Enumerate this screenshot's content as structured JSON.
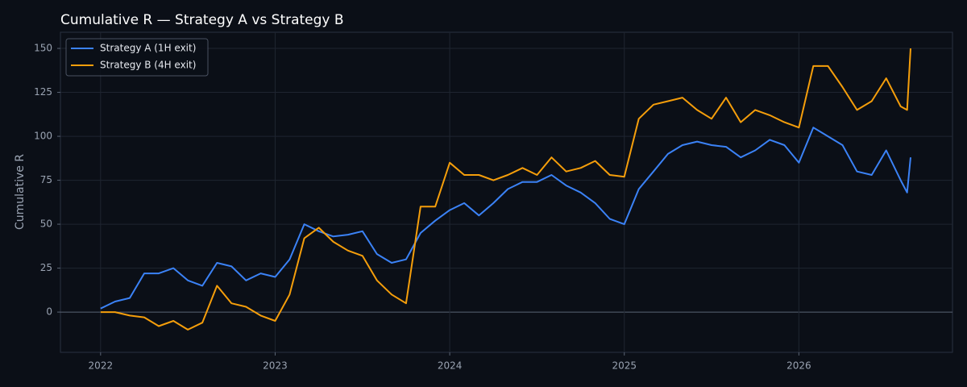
{
  "chart_data": {
    "type": "line",
    "title": "Cumulative R — Strategy A vs Strategy B",
    "y_label": "Cumulative R",
    "x": [
      2022.0,
      2022.083,
      2022.167,
      2022.25,
      2022.333,
      2022.417,
      2022.5,
      2022.583,
      2022.667,
      2022.75,
      2022.833,
      2022.917,
      2023.0,
      2023.083,
      2023.167,
      2023.25,
      2023.333,
      2023.417,
      2023.5,
      2023.583,
      2023.667,
      2023.75,
      2023.833,
      2023.917,
      2024.0,
      2024.083,
      2024.167,
      2024.25,
      2024.333,
      2024.417,
      2024.5,
      2024.583,
      2024.667,
      2024.75,
      2024.833,
      2024.917,
      2025.0,
      2025.083,
      2025.167,
      2025.25,
      2025.333,
      2025.417,
      2025.5,
      2025.583,
      2025.667,
      2025.75,
      2025.833,
      2025.917,
      2026.0,
      2026.083,
      2026.167,
      2026.25,
      2026.333,
      2026.417,
      2026.5,
      2026.583,
      2026.62,
      2026.64
    ],
    "series": [
      {
        "name": "Strategy A (1H exit)",
        "color": "#3b82f6",
        "values": [
          2,
          6,
          8,
          22,
          22,
          25,
          18,
          15,
          28,
          26,
          18,
          22,
          20,
          30,
          50,
          46,
          43,
          44,
          46,
          33,
          28,
          30,
          45,
          52,
          58,
          62,
          55,
          62,
          70,
          74,
          74,
          78,
          72,
          68,
          62,
          53,
          50,
          70,
          80,
          90,
          95,
          97,
          95,
          94,
          88,
          92,
          98,
          95,
          85,
          105,
          100,
          95,
          80,
          78,
          92,
          75,
          68,
          88
        ]
      },
      {
        "name": "Strategy B (4H exit)",
        "color": "#f59e0b",
        "values": [
          0,
          0,
          -2,
          -3,
          -8,
          -5,
          -10,
          -6,
          15,
          5,
          3,
          -2,
          -5,
          10,
          42,
          48,
          40,
          35,
          32,
          18,
          10,
          5,
          60,
          60,
          85,
          78,
          78,
          75,
          78,
          82,
          78,
          88,
          80,
          82,
          86,
          78,
          77,
          110,
          118,
          120,
          122,
          115,
          110,
          122,
          108,
          115,
          112,
          108,
          105,
          140,
          140,
          128,
          115,
          120,
          133,
          117,
          115,
          150
        ]
      }
    ],
    "xlim": [
      2021.77,
      2026.88
    ],
    "xticks": [
      2022,
      2023,
      2024,
      2025,
      2026
    ],
    "ylim": [
      -22.9,
      159.2
    ],
    "yticks": [
      0,
      25,
      50,
      75,
      100,
      125,
      150
    ],
    "grid": true,
    "legend": "upper-left"
  }
}
